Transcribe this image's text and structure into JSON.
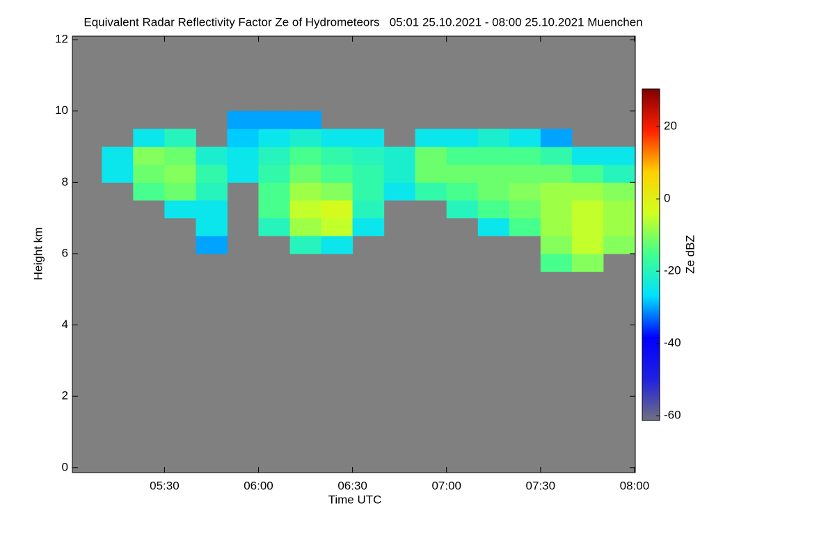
{
  "chart_data": {
    "type": "heatmap",
    "title": "Equivalent Radar Reflectivity Factor Ze of Hydrometeors   05:01 25.10.2021 - 08:00 25.10.2021 Muenchen",
    "xlabel": "Time UTC",
    "ylabel": "Height km",
    "colorbar_label": "Ze dBZ",
    "xlim": [
      5.01,
      8.004
    ],
    "xticks": [
      {
        "value": 5.5,
        "label": "05:30"
      },
      {
        "value": 6.0,
        "label": "06:00"
      },
      {
        "value": 6.5,
        "label": "06:30"
      },
      {
        "value": 7.0,
        "label": "07:00"
      },
      {
        "value": 7.5,
        "label": "07:30"
      },
      {
        "value": 8.0,
        "label": "08:00"
      }
    ],
    "ylim": [
      -0.14,
      12.1
    ],
    "yticks": [
      0,
      2,
      4,
      6,
      8,
      10,
      12
    ],
    "clim": [
      -61.3,
      30.4
    ],
    "cticks": [
      -60,
      -40,
      -20,
      0,
      20
    ],
    "colormap": [
      "#707080",
      "#2020e0",
      "#0000ff",
      "#00e0ff",
      "#40ff90",
      "#d0ff20",
      "#ffd000",
      "#ff2000",
      "#800000"
    ],
    "background": "#808080",
    "x_edges": [
      5.0167,
      5.1667,
      5.3333,
      5.5,
      5.6667,
      5.8333,
      6.0,
      6.1667,
      6.3333,
      6.5,
      6.6667,
      6.8333,
      7.0,
      7.1667,
      7.3333,
      7.5,
      7.6667,
      7.8333,
      8.0
    ],
    "y_edges": [
      5.5,
      6.0,
      6.5,
      7.0,
      7.5,
      8.0,
      8.5,
      9.0,
      9.5,
      10.0
    ],
    "z": [
      [
        null,
        null,
        null,
        null,
        null,
        null,
        null,
        null,
        null,
        null,
        null,
        null,
        null,
        null,
        null,
        -15,
        -10,
        null
      ],
      [
        null,
        null,
        null,
        null,
        -30,
        null,
        null,
        -20,
        -25,
        null,
        null,
        null,
        null,
        null,
        null,
        -10,
        -5,
        -10
      ],
      [
        null,
        null,
        null,
        null,
        -25,
        null,
        -20,
        -8,
        -5,
        -25,
        null,
        null,
        null,
        -25,
        -15,
        -8,
        -5,
        -8
      ],
      [
        null,
        null,
        null,
        -25,
        -25,
        null,
        -15,
        -5,
        -3,
        -20,
        null,
        null,
        -20,
        -15,
        -12,
        -8,
        -5,
        -8
      ],
      [
        null,
        null,
        -15,
        -12,
        -20,
        null,
        -15,
        -8,
        -10,
        -18,
        -25,
        -18,
        -15,
        -12,
        -10,
        -8,
        -8,
        -10
      ],
      [
        null,
        -25,
        -12,
        -10,
        -18,
        -25,
        -18,
        -12,
        -15,
        -18,
        -22,
        -12,
        -12,
        -12,
        -12,
        -12,
        -15,
        -20
      ],
      [
        null,
        -25,
        -10,
        -12,
        -22,
        -25,
        -20,
        -15,
        -18,
        -20,
        -22,
        -12,
        -15,
        -15,
        -15,
        -18,
        -25,
        -25
      ],
      [
        null,
        null,
        -25,
        -20,
        null,
        -28,
        -25,
        -22,
        -25,
        -25,
        null,
        -25,
        -25,
        -22,
        -25,
        -30,
        null,
        null
      ],
      [
        null,
        null,
        null,
        null,
        null,
        -30,
        -30,
        -30,
        null,
        null,
        null,
        null,
        null,
        null,
        null,
        null,
        null,
        null
      ]
    ]
  }
}
